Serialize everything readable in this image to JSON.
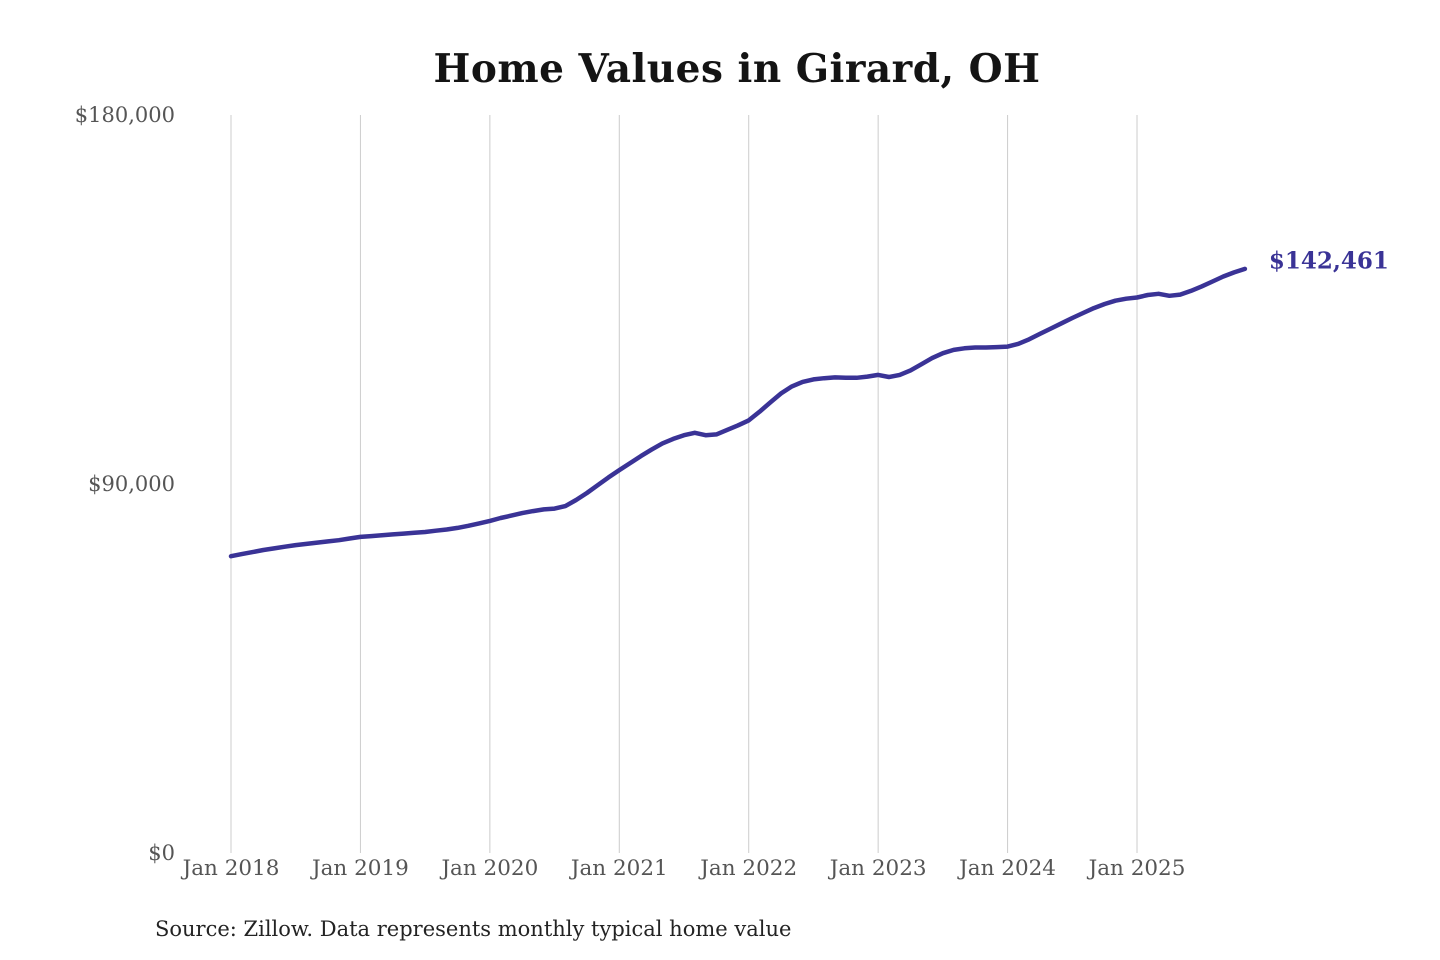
{
  "chart": {
    "title": "Home Values in Girard, OH",
    "end_label": "$142,461",
    "source": "Source: Zillow. Data represents monthly typical home value",
    "colors": {
      "line": "#3a3396",
      "end_label_text": "#3a3396",
      "grid": "#cccccc",
      "tick_text": "#555555",
      "title_text": "#141414",
      "source_text": "#232323",
      "background": "#ffffff"
    }
  },
  "chart_data": {
    "type": "line",
    "title": "Home Values in Girard, OH",
    "series_name": "Monthly typical home value (Zillow)",
    "x_unit": "month",
    "x_start": "2018-01",
    "x_end": "2025-11",
    "x_tick_labels": [
      "Jan 2018",
      "Jan 2019",
      "Jan 2020",
      "Jan 2021",
      "Jan 2022",
      "Jan 2023",
      "Jan 2024",
      "Jan 2025"
    ],
    "y_ticks": [
      {
        "label": "$0",
        "value": 0
      },
      {
        "label": "$90,000",
        "value": 90000
      },
      {
        "label": "$180,000",
        "value": 180000
      }
    ],
    "ylim": [
      0,
      180000
    ],
    "grid": "vertical-only",
    "legend": "none",
    "final_value": 142461,
    "values": [
      72400,
      72900,
      73400,
      73900,
      74300,
      74700,
      75100,
      75400,
      75700,
      76000,
      76300,
      76700,
      77100,
      77300,
      77500,
      77700,
      77900,
      78100,
      78300,
      78600,
      78900,
      79300,
      79800,
      80400,
      81000,
      81700,
      82300,
      82900,
      83400,
      83800,
      84000,
      84600,
      86100,
      87800,
      89700,
      91600,
      93400,
      95100,
      96800,
      98400,
      99900,
      101000,
      101900,
      102500,
      101900,
      102100,
      103200,
      104300,
      105500,
      107600,
      109900,
      112100,
      113800,
      114900,
      115500,
      115800,
      116000,
      115900,
      115900,
      116200,
      116600,
      116100,
      116600,
      117700,
      119200,
      120700,
      121900,
      122700,
      123100,
      123300,
      123300,
      123400,
      123500,
      124200,
      125300,
      126600,
      127900,
      129200,
      130500,
      131700,
      132900,
      133900,
      134700,
      135200,
      135500,
      136100,
      136400,
      135900,
      136200,
      137100,
      138200,
      139400,
      140600,
      141600,
      142461
    ]
  }
}
